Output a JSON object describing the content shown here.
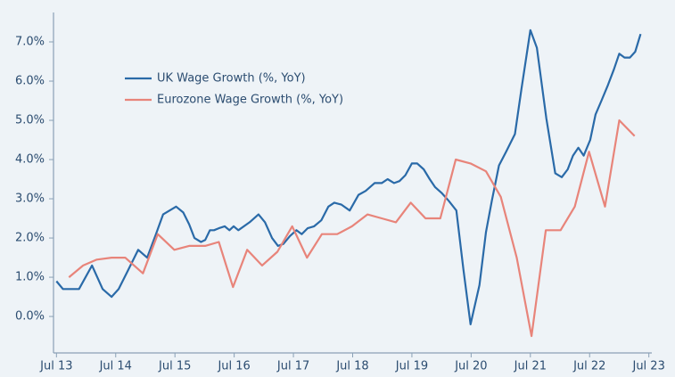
{
  "chart_data": {
    "type": "line",
    "series": [
      {
        "name": "UK Wage Growth (%, YoY)",
        "color": "#2a6aa8",
        "x": [
          2013.5,
          2013.61,
          2013.88,
          2014.1,
          2014.28,
          2014.43,
          2014.55,
          2014.7,
          2014.88,
          2015.03,
          2015.18,
          2015.3,
          2015.41,
          2015.52,
          2015.64,
          2015.74,
          2015.83,
          2015.94,
          2016.01,
          2016.09,
          2016.16,
          2016.24,
          2016.34,
          2016.42,
          2016.49,
          2016.57,
          2016.76,
          2016.91,
          2017.02,
          2017.14,
          2017.24,
          2017.33,
          2017.44,
          2017.55,
          2017.64,
          2017.74,
          2017.85,
          2017.97,
          2018.09,
          2018.19,
          2018.31,
          2018.45,
          2018.6,
          2018.72,
          2018.87,
          2018.99,
          2019.09,
          2019.2,
          2019.29,
          2019.39,
          2019.5,
          2019.59,
          2019.7,
          2019.8,
          2019.89,
          2020.0,
          2020.12,
          2020.25,
          2020.37,
          2020.49,
          2020.64,
          2020.75,
          2020.85,
          2020.97,
          2021.09,
          2021.24,
          2021.35,
          2021.5,
          2021.61,
          2021.77,
          2021.92,
          2022.03,
          2022.13,
          2022.22,
          2022.31,
          2022.4,
          2022.51,
          2022.6,
          2022.7,
          2022.81,
          2022.91,
          2023.0,
          2023.09,
          2023.18,
          2023.27,
          2023.36
        ],
        "values": [
          0.9,
          0.7,
          0.7,
          1.3,
          0.7,
          0.5,
          0.7,
          1.15,
          1.7,
          1.5,
          2.1,
          2.6,
          2.7,
          2.8,
          2.65,
          2.35,
          2.0,
          1.9,
          1.95,
          2.2,
          2.2,
          2.25,
          2.3,
          2.2,
          2.3,
          2.2,
          2.4,
          2.6,
          2.4,
          2.0,
          1.8,
          1.85,
          2.05,
          2.2,
          2.1,
          2.25,
          2.3,
          2.45,
          2.8,
          2.9,
          2.85,
          2.7,
          3.1,
          3.2,
          3.4,
          3.4,
          3.5,
          3.4,
          3.45,
          3.6,
          3.9,
          3.9,
          3.75,
          3.5,
          3.3,
          3.15,
          2.95,
          2.7,
          1.2,
          -0.2,
          0.8,
          2.15,
          2.95,
          3.85,
          4.2,
          4.65,
          5.8,
          7.3,
          6.85,
          5.05,
          3.65,
          3.55,
          3.75,
          4.1,
          4.3,
          4.1,
          4.5,
          5.15,
          5.5,
          5.9,
          6.3,
          6.7,
          6.6,
          6.6,
          6.75,
          7.2
        ]
      },
      {
        "name": "Eurozone Wage Growth (%, YoY)",
        "color": "#e8847a",
        "x": [
          2013.71,
          2013.95,
          2014.18,
          2014.43,
          2014.66,
          2014.96,
          2015.21,
          2015.49,
          2015.74,
          2016.01,
          2016.24,
          2016.48,
          2016.72,
          2016.97,
          2017.23,
          2017.48,
          2017.73,
          2017.98,
          2018.24,
          2018.49,
          2018.75,
          2018.99,
          2019.23,
          2019.48,
          2019.73,
          2019.98,
          2020.24,
          2020.49,
          2020.75,
          2021.0,
          2021.27,
          2021.52,
          2021.76,
          2022.01,
          2022.25,
          2022.49,
          2022.76,
          2023.0,
          2023.26
        ],
        "values": [
          1.0,
          1.3,
          1.45,
          1.5,
          1.5,
          1.1,
          2.1,
          1.7,
          1.8,
          1.8,
          1.9,
          0.75,
          1.7,
          1.3,
          1.65,
          2.3,
          1.5,
          2.1,
          2.1,
          2.3,
          2.6,
          2.5,
          2.4,
          2.9,
          2.5,
          2.5,
          4.0,
          3.9,
          3.7,
          3.05,
          1.5,
          -0.5,
          2.2,
          2.2,
          2.8,
          4.2,
          2.8,
          5.0,
          4.6
        ]
      }
    ],
    "xlim": [
      2013.45,
      2023.55
    ],
    "xticks": [
      {
        "value": 2013.5,
        "label": "Jul 13"
      },
      {
        "value": 2014.5,
        "label": "Jul 14"
      },
      {
        "value": 2015.5,
        "label": "Jul 15"
      },
      {
        "value": 2016.5,
        "label": "Jul 16"
      },
      {
        "value": 2017.5,
        "label": "Jul 17"
      },
      {
        "value": 2018.5,
        "label": "Jul 18"
      },
      {
        "value": 2019.5,
        "label": "Jul 19"
      },
      {
        "value": 2020.5,
        "label": "Jul 20"
      },
      {
        "value": 2021.5,
        "label": "Jul 21"
      },
      {
        "value": 2022.5,
        "label": "Jul 22"
      },
      {
        "value": 2023.5,
        "label": "Jul 23"
      }
    ],
    "ylim": [
      -0.93,
      7.75
    ],
    "yticks": [
      {
        "value": 0,
        "label": "0.0%"
      },
      {
        "value": 1,
        "label": "1.0%"
      },
      {
        "value": 2,
        "label": "2.0%"
      },
      {
        "value": 3,
        "label": "3.0%"
      },
      {
        "value": 4,
        "label": "4.0%"
      },
      {
        "value": 5,
        "label": "5.0%"
      },
      {
        "value": 6,
        "label": "6.0%"
      },
      {
        "value": 7,
        "label": "7.0%"
      }
    ],
    "grid": false,
    "legend": "upper left"
  }
}
